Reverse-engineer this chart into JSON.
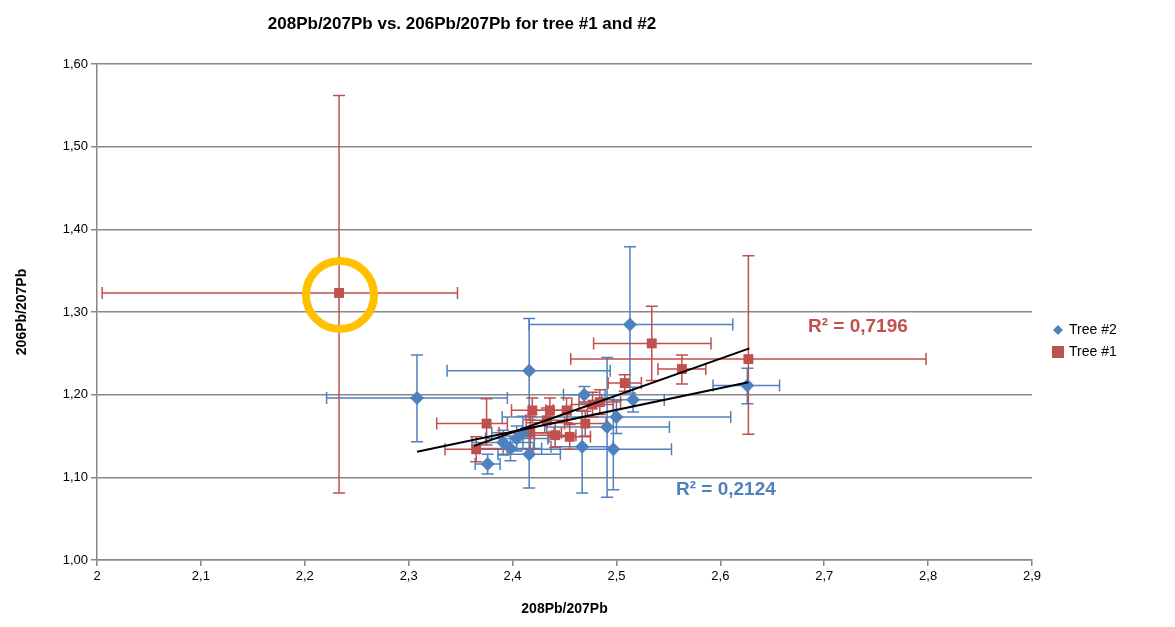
{
  "chart_data": {
    "type": "scatter",
    "title": "208Pb/207Pb vs. 206Pb/207Pb for tree #1 and #2",
    "xlabel": "208Pb/207Pb",
    "ylabel": "206Pb/207Pb",
    "xlim": [
      2,
      2.9
    ],
    "xticks": [
      2,
      {
        "value": 2.1,
        "label": "2,1"
      },
      {
        "value": 2.2,
        "label": "2,2"
      },
      {
        "value": 2.3,
        "label": "2,3"
      },
      {
        "value": 2.4,
        "label": "2,4"
      },
      {
        "value": 2.5,
        "label": "2,5"
      },
      {
        "value": 2.6,
        "label": "2,6"
      },
      {
        "value": 2.7,
        "label": "2,7"
      },
      {
        "value": 2.8,
        "label": "2,8"
      },
      {
        "value": 2.9,
        "label": "2,9"
      }
    ],
    "ylim": [
      1,
      1.6
    ],
    "yticks": [
      {
        "value": 1,
        "label": "1,00"
      },
      {
        "value": 1.1,
        "label": "1,10"
      },
      {
        "value": 1.2,
        "label": "1,20"
      },
      {
        "value": 1.3,
        "label": "1,30"
      },
      {
        "value": 1.4,
        "label": "1,40"
      },
      {
        "value": 1.5,
        "label": "1,50"
      },
      {
        "value": 1.6,
        "label": "1,60"
      }
    ],
    "grid": "y",
    "legend": "right",
    "series": [
      {
        "name": "Tree #2",
        "color": "#4f81bd",
        "type": "scatter",
        "marker": "diamond",
        "x": [
          2.308,
          2.416,
          2.513,
          2.626,
          2.376,
          2.416,
          2.467,
          2.497,
          2.491,
          2.469,
          2.391,
          2.398,
          2.404,
          2.41,
          2.5,
          2.516
        ],
        "values": [
          1.196,
          1.229,
          1.285,
          1.211,
          1.116,
          1.128,
          1.137,
          1.134,
          1.161,
          1.2,
          1.142,
          1.135,
          1.147,
          1.154,
          1.173,
          1.194
        ],
        "xerrors": [
          [
            2.221,
            2.395
          ],
          [
            2.337,
            2.494
          ],
          [
            2.416,
            2.612
          ],
          [
            2.593,
            2.657
          ],
          0.012,
          0.03,
          0.03,
          [
            2.42,
            2.553
          ],
          0.06,
          0.02,
          0.03,
          0.03,
          0.03,
          0.03,
          0.11,
          0.03
        ],
        "errors": [
          [
            1.143,
            1.248
          ],
          [
            1.17,
            1.292
          ],
          [
            1.202,
            1.379
          ],
          [
            1.189,
            1.232
          ],
          0.012,
          [
            1.087,
            1.16
          ],
          [
            1.081,
            1.18
          ],
          [
            1.085,
            1.2
          ],
          [
            1.076,
            1.245
          ],
          0.01,
          0.015,
          0.015,
          0.015,
          0.02,
          0.02,
          0.015
        ]
      },
      {
        "name": "Tree #1",
        "color": "#c0504d",
        "type": "scatter",
        "marker": "square",
        "x": [
          2.233,
          2.627,
          2.534,
          2.563,
          2.508,
          2.375,
          2.365,
          2.419,
          2.436,
          2.417,
          2.441,
          2.455,
          2.47,
          2.452,
          2.477,
          2.484,
          2.433
        ],
        "values": [
          1.323,
          1.243,
          1.262,
          1.231,
          1.214,
          1.165,
          1.134,
          1.181,
          1.181,
          1.154,
          1.151,
          1.149,
          1.165,
          1.181,
          1.188,
          1.191,
          1.169
        ],
        "xerrors": [
          [
            2.005,
            2.347
          ],
          [
            2.456,
            2.798
          ],
          [
            2.478,
            2.591
          ],
          [
            2.54,
            2.586
          ],
          0.016,
          [
            2.327,
            2.395
          ],
          0.03,
          0.02,
          0.02,
          0.03,
          0.02,
          0.02,
          0.02,
          0.02,
          0.02,
          0.02,
          0.02
        ],
        "errors": [
          [
            1.081,
            1.562
          ],
          [
            1.152,
            1.368
          ],
          [
            1.217,
            1.307
          ],
          [
            1.213,
            1.248
          ],
          0.01,
          [
            1.139,
            1.195
          ],
          0.015,
          0.015,
          0.015,
          0.02,
          0.015,
          0.015,
          0.015,
          0.015,
          0.015,
          0.015,
          0.015
        ]
      },
      {
        "color": "#000000",
        "type": "line",
        "marker": "none",
        "x": [
          2.308,
          2.627
        ],
        "values": [
          1.131,
          1.215
        ]
      },
      {
        "color": "#000000",
        "type": "line",
        "marker": "none",
        "x": [
          2.363,
          2.628
        ],
        "values": [
          1.138,
          1.256
        ]
      }
    ],
    "annotations": [
      "R² = 0,2124",
      "R² = 0,7196"
    ]
  }
}
